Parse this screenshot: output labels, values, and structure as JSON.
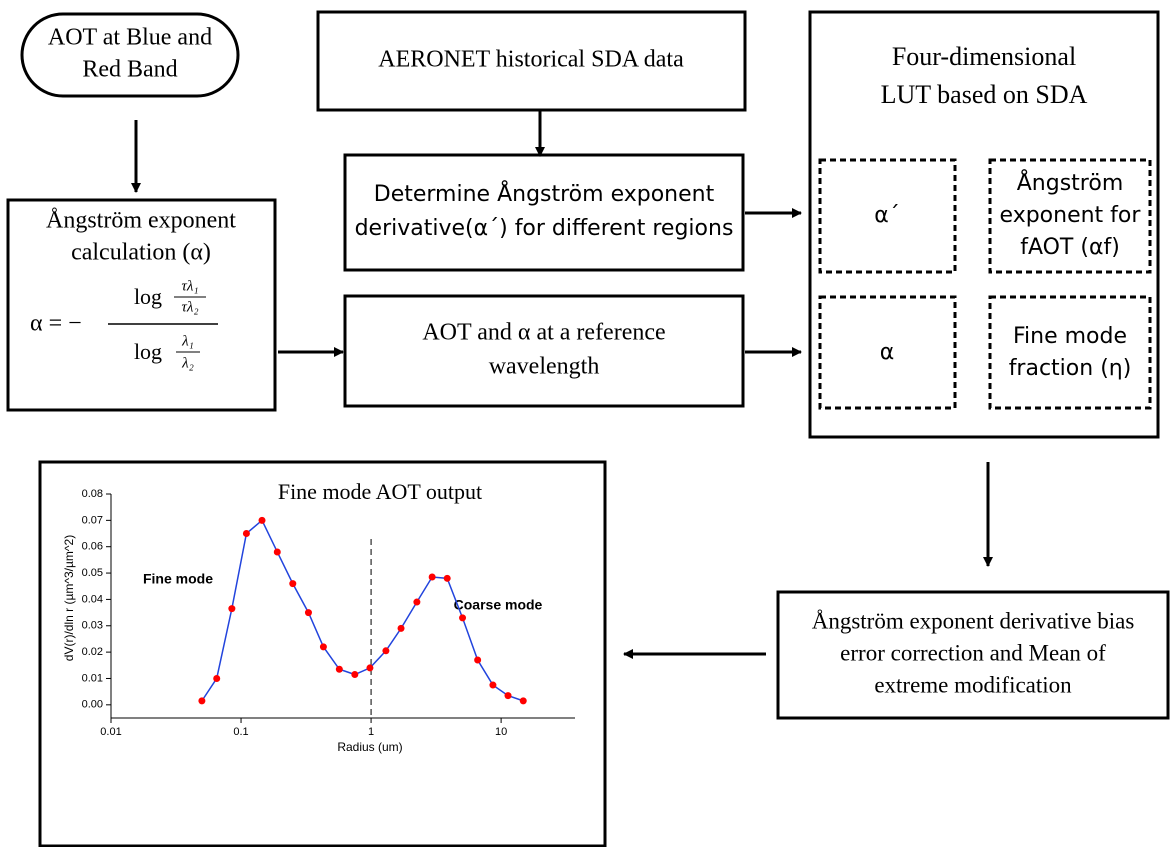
{
  "nodes": [
    {
      "lines": [
        "AOT at Blue and",
        "Red Band"
      ]
    },
    {
      "lines": [
        "Ångström exponent",
        "calculation (α)"
      ]
    },
    {
      "lines": [
        "AERONET historical SDA data"
      ]
    },
    {
      "lines": [
        "Determine Ångström exponent",
        "derivative(α´) for different regions"
      ]
    },
    {
      "lines": [
        "AOT and α at a reference",
        "wavelength"
      ]
    },
    {
      "lines": [
        "Four-dimensional",
        "LUT based on SDA"
      ]
    },
    {
      "lines": [
        "α´"
      ]
    },
    {
      "lines": [
        "Ångström",
        "exponent for",
        "fAOT (αf)"
      ]
    },
    {
      "lines": [
        "α"
      ]
    },
    {
      "lines": [
        "Fine mode",
        "fraction (η)"
      ]
    },
    {
      "lines": [
        "Ångström exponent derivative bias",
        "error correction and Mean of",
        "extreme modification"
      ]
    }
  ],
  "formula": {
    "lhs": "α = −",
    "num_log": "log",
    "num_top": "τλ₁",
    "num_bottom": "τλ₂",
    "den_log": "log",
    "den_top": "λ₁",
    "den_bottom": "λ₂"
  },
  "chart_data": {
    "type": "line",
    "title": "Fine mode AOT output",
    "x_label": "Radius (um)",
    "y_label": "dV(r)/dln r (µm^3/µm^2)",
    "annotations": [
      "Fine mode",
      "Coarse mode"
    ],
    "x_log": true,
    "vline": 1,
    "x": [
      0.05,
      0.065,
      0.085,
      0.11,
      0.145,
      0.19,
      0.25,
      0.33,
      0.43,
      0.57,
      0.75,
      0.98,
      1.3,
      1.7,
      2.25,
      2.95,
      3.85,
      5.05,
      6.6,
      8.65,
      11.3,
      14.8
    ],
    "values": [
      0.0015,
      0.01,
      0.0365,
      0.065,
      0.07,
      0.058,
      0.046,
      0.035,
      0.022,
      0.0135,
      0.0115,
      0.014,
      0.0205,
      0.029,
      0.039,
      0.0485,
      0.048,
      0.033,
      0.017,
      0.0075,
      0.0035,
      0.0015
    ],
    "line_color": "#2244dd",
    "marker_color": "#ff0000",
    "xlim": [
      0.01,
      37
    ],
    "ylim": [
      -0.005,
      0.08
    ],
    "xticks": [
      0.01,
      0.1,
      1,
      10
    ],
    "yticks": [
      {
        "value": 0,
        "label": "0.00"
      },
      {
        "value": 0.01,
        "label": "0.01"
      },
      {
        "value": 0.02,
        "label": "0.02"
      },
      {
        "value": 0.03,
        "label": "0.03"
      },
      {
        "value": 0.04,
        "label": "0.04"
      },
      {
        "value": 0.05,
        "label": "0.05"
      },
      {
        "value": 0.06,
        "label": "0.06"
      },
      {
        "value": 0.07,
        "label": "0.07"
      },
      {
        "value": 0.08,
        "label": "0.08"
      }
    ]
  }
}
